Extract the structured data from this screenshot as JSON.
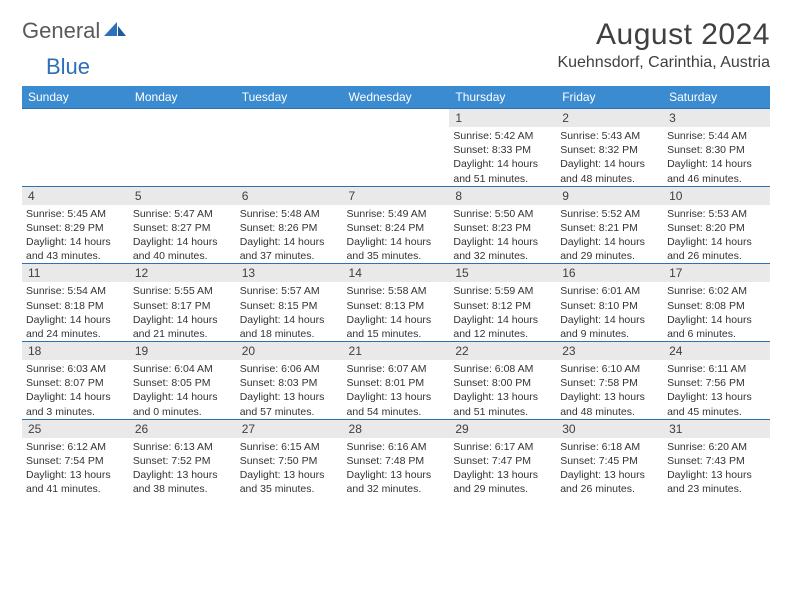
{
  "brand": {
    "part1": "General",
    "part2": "Blue"
  },
  "title": "August 2024",
  "location": "Kuehnsdorf, Carinthia, Austria",
  "colors": {
    "header_bg": "#3b8bd0",
    "header_text": "#ffffff",
    "rule": "#2d6fb8",
    "daynum_bg": "#e9e9e9",
    "text": "#333333",
    "logo_gray": "#5a5a5a",
    "logo_blue": "#2d6fb8"
  },
  "day_names": [
    "Sunday",
    "Monday",
    "Tuesday",
    "Wednesday",
    "Thursday",
    "Friday",
    "Saturday"
  ],
  "weeks": [
    [
      null,
      null,
      null,
      null,
      {
        "n": "1",
        "sr": "5:42 AM",
        "ss": "8:33 PM",
        "dl": "14 hours and 51 minutes."
      },
      {
        "n": "2",
        "sr": "5:43 AM",
        "ss": "8:32 PM",
        "dl": "14 hours and 48 minutes."
      },
      {
        "n": "3",
        "sr": "5:44 AM",
        "ss": "8:30 PM",
        "dl": "14 hours and 46 minutes."
      }
    ],
    [
      {
        "n": "4",
        "sr": "5:45 AM",
        "ss": "8:29 PM",
        "dl": "14 hours and 43 minutes."
      },
      {
        "n": "5",
        "sr": "5:47 AM",
        "ss": "8:27 PM",
        "dl": "14 hours and 40 minutes."
      },
      {
        "n": "6",
        "sr": "5:48 AM",
        "ss": "8:26 PM",
        "dl": "14 hours and 37 minutes."
      },
      {
        "n": "7",
        "sr": "5:49 AM",
        "ss": "8:24 PM",
        "dl": "14 hours and 35 minutes."
      },
      {
        "n": "8",
        "sr": "5:50 AM",
        "ss": "8:23 PM",
        "dl": "14 hours and 32 minutes."
      },
      {
        "n": "9",
        "sr": "5:52 AM",
        "ss": "8:21 PM",
        "dl": "14 hours and 29 minutes."
      },
      {
        "n": "10",
        "sr": "5:53 AM",
        "ss": "8:20 PM",
        "dl": "14 hours and 26 minutes."
      }
    ],
    [
      {
        "n": "11",
        "sr": "5:54 AM",
        "ss": "8:18 PM",
        "dl": "14 hours and 24 minutes."
      },
      {
        "n": "12",
        "sr": "5:55 AM",
        "ss": "8:17 PM",
        "dl": "14 hours and 21 minutes."
      },
      {
        "n": "13",
        "sr": "5:57 AM",
        "ss": "8:15 PM",
        "dl": "14 hours and 18 minutes."
      },
      {
        "n": "14",
        "sr": "5:58 AM",
        "ss": "8:13 PM",
        "dl": "14 hours and 15 minutes."
      },
      {
        "n": "15",
        "sr": "5:59 AM",
        "ss": "8:12 PM",
        "dl": "14 hours and 12 minutes."
      },
      {
        "n": "16",
        "sr": "6:01 AM",
        "ss": "8:10 PM",
        "dl": "14 hours and 9 minutes."
      },
      {
        "n": "17",
        "sr": "6:02 AM",
        "ss": "8:08 PM",
        "dl": "14 hours and 6 minutes."
      }
    ],
    [
      {
        "n": "18",
        "sr": "6:03 AM",
        "ss": "8:07 PM",
        "dl": "14 hours and 3 minutes."
      },
      {
        "n": "19",
        "sr": "6:04 AM",
        "ss": "8:05 PM",
        "dl": "14 hours and 0 minutes."
      },
      {
        "n": "20",
        "sr": "6:06 AM",
        "ss": "8:03 PM",
        "dl": "13 hours and 57 minutes."
      },
      {
        "n": "21",
        "sr": "6:07 AM",
        "ss": "8:01 PM",
        "dl": "13 hours and 54 minutes."
      },
      {
        "n": "22",
        "sr": "6:08 AM",
        "ss": "8:00 PM",
        "dl": "13 hours and 51 minutes."
      },
      {
        "n": "23",
        "sr": "6:10 AM",
        "ss": "7:58 PM",
        "dl": "13 hours and 48 minutes."
      },
      {
        "n": "24",
        "sr": "6:11 AM",
        "ss": "7:56 PM",
        "dl": "13 hours and 45 minutes."
      }
    ],
    [
      {
        "n": "25",
        "sr": "6:12 AM",
        "ss": "7:54 PM",
        "dl": "13 hours and 41 minutes."
      },
      {
        "n": "26",
        "sr": "6:13 AM",
        "ss": "7:52 PM",
        "dl": "13 hours and 38 minutes."
      },
      {
        "n": "27",
        "sr": "6:15 AM",
        "ss": "7:50 PM",
        "dl": "13 hours and 35 minutes."
      },
      {
        "n": "28",
        "sr": "6:16 AM",
        "ss": "7:48 PM",
        "dl": "13 hours and 32 minutes."
      },
      {
        "n": "29",
        "sr": "6:17 AM",
        "ss": "7:47 PM",
        "dl": "13 hours and 29 minutes."
      },
      {
        "n": "30",
        "sr": "6:18 AM",
        "ss": "7:45 PM",
        "dl": "13 hours and 26 minutes."
      },
      {
        "n": "31",
        "sr": "6:20 AM",
        "ss": "7:43 PM",
        "dl": "13 hours and 23 minutes."
      }
    ]
  ],
  "labels": {
    "sunrise": "Sunrise:",
    "sunset": "Sunset:",
    "daylight": "Daylight:"
  }
}
